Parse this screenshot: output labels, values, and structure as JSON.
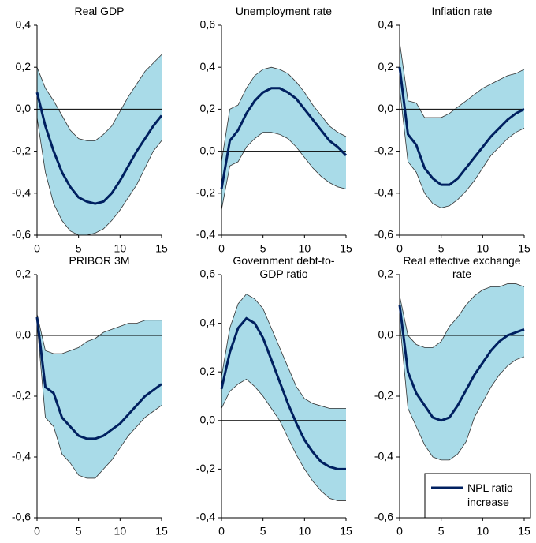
{
  "chart_data": [
    {
      "type": "line",
      "title": "Real GDP",
      "x": [
        0,
        1,
        2,
        3,
        4,
        5,
        6,
        7,
        8,
        9,
        10,
        11,
        12,
        13,
        14,
        15
      ],
      "xlim": [
        0,
        15
      ],
      "xticks": [
        0,
        5,
        10,
        15
      ],
      "ylim": [
        -0.6,
        0.4
      ],
      "yticks": [
        {
          "value": -0.6,
          "label": "-0,6"
        },
        {
          "value": -0.4,
          "label": "-0,4"
        },
        {
          "value": -0.2,
          "label": "-0,2"
        },
        {
          "value": 0,
          "label": "0,0"
        },
        {
          "value": 0.2,
          "label": "0,2"
        },
        {
          "value": 0.4,
          "label": "0,4"
        }
      ],
      "series": [
        {
          "color": "#002060",
          "values": [
            0.08,
            -0.08,
            -0.2,
            -0.3,
            -0.37,
            -0.42,
            -0.44,
            -0.45,
            -0.44,
            -0.4,
            -0.34,
            -0.27,
            -0.2,
            -0.14,
            -0.08,
            -0.03
          ]
        }
      ],
      "band": {
        "color": "#a9dbe8",
        "upper": [
          0.2,
          0.1,
          0.04,
          -0.03,
          -0.1,
          -0.14,
          -0.15,
          -0.15,
          -0.12,
          -0.08,
          -0.01,
          0.06,
          0.12,
          0.18,
          0.22,
          0.26
        ],
        "lower": [
          -0.04,
          -0.3,
          -0.45,
          -0.53,
          -0.58,
          -0.6,
          -0.6,
          -0.59,
          -0.57,
          -0.53,
          -0.48,
          -0.42,
          -0.36,
          -0.28,
          -0.2,
          -0.15
        ]
      }
    },
    {
      "type": "line",
      "title": "Unemployment rate",
      "x": [
        0,
        1,
        2,
        3,
        4,
        5,
        6,
        7,
        8,
        9,
        10,
        11,
        12,
        13,
        14,
        15
      ],
      "xlim": [
        0,
        15
      ],
      "xticks": [
        0,
        5,
        10,
        15
      ],
      "ylim": [
        -0.4,
        0.6
      ],
      "yticks": [
        {
          "value": -0.4,
          "label": "-0,4"
        },
        {
          "value": -0.2,
          "label": "-0,2"
        },
        {
          "value": 0,
          "label": "0,0"
        },
        {
          "value": 0.2,
          "label": "0,2"
        },
        {
          "value": 0.4,
          "label": "0,4"
        },
        {
          "value": 0.6,
          "label": "0,6"
        }
      ],
      "series": [
        {
          "color": "#002060",
          "values": [
            -0.18,
            0.05,
            0.1,
            0.18,
            0.24,
            0.28,
            0.3,
            0.3,
            0.28,
            0.25,
            0.2,
            0.15,
            0.1,
            0.05,
            0.02,
            -0.02
          ]
        }
      ],
      "band": {
        "color": "#a9dbe8",
        "upper": [
          -0.05,
          0.2,
          0.22,
          0.3,
          0.36,
          0.39,
          0.4,
          0.39,
          0.37,
          0.33,
          0.28,
          0.22,
          0.17,
          0.12,
          0.09,
          0.07
        ],
        "lower": [
          -0.28,
          -0.07,
          -0.05,
          0.02,
          0.06,
          0.09,
          0.09,
          0.08,
          0.06,
          0.02,
          -0.03,
          -0.08,
          -0.12,
          -0.15,
          -0.17,
          -0.18
        ]
      }
    },
    {
      "type": "line",
      "title": "Inflation rate",
      "x": [
        0,
        1,
        2,
        3,
        4,
        5,
        6,
        7,
        8,
        9,
        10,
        11,
        12,
        13,
        14,
        15
      ],
      "xlim": [
        0,
        15
      ],
      "xticks": [
        0,
        5,
        10,
        15
      ],
      "ylim": [
        -0.6,
        0.4
      ],
      "yticks": [
        {
          "value": -0.6,
          "label": "-0,6"
        },
        {
          "value": -0.4,
          "label": "-0,4"
        },
        {
          "value": -0.2,
          "label": "-0,2"
        },
        {
          "value": 0,
          "label": "0,0"
        },
        {
          "value": 0.2,
          "label": "0,2"
        },
        {
          "value": 0.4,
          "label": "0,4"
        }
      ],
      "series": [
        {
          "color": "#002060",
          "values": [
            0.2,
            -0.12,
            -0.17,
            -0.28,
            -0.33,
            -0.36,
            -0.36,
            -0.33,
            -0.28,
            -0.23,
            -0.18,
            -0.13,
            -0.09,
            -0.05,
            -0.02,
            0.0
          ]
        }
      ],
      "band": {
        "color": "#a9dbe8",
        "upper": [
          0.32,
          0.04,
          0.03,
          -0.04,
          -0.04,
          -0.04,
          -0.02,
          0.01,
          0.04,
          0.07,
          0.1,
          0.12,
          0.14,
          0.16,
          0.17,
          0.19
        ],
        "lower": [
          0.1,
          -0.25,
          -0.3,
          -0.4,
          -0.45,
          -0.47,
          -0.46,
          -0.43,
          -0.39,
          -0.34,
          -0.28,
          -0.22,
          -0.18,
          -0.14,
          -0.11,
          -0.09
        ]
      }
    },
    {
      "type": "line",
      "title": "PRIBOR 3M",
      "x": [
        0,
        1,
        2,
        3,
        4,
        5,
        6,
        7,
        8,
        9,
        10,
        11,
        12,
        13,
        14,
        15
      ],
      "xlim": [
        0,
        15
      ],
      "xticks": [
        0,
        5,
        10,
        15
      ],
      "ylim": [
        -0.6,
        0.2
      ],
      "yticks": [
        {
          "value": -0.6,
          "label": "-0,6"
        },
        {
          "value": -0.4,
          "label": "-0,4"
        },
        {
          "value": -0.2,
          "label": "-0,2"
        },
        {
          "value": 0,
          "label": "0,0"
        },
        {
          "value": 0.2,
          "label": "0,2"
        }
      ],
      "series": [
        {
          "color": "#002060",
          "values": [
            0.06,
            -0.17,
            -0.19,
            -0.27,
            -0.3,
            -0.33,
            -0.34,
            -0.34,
            -0.33,
            -0.31,
            -0.29,
            -0.26,
            -0.23,
            -0.2,
            -0.18,
            -0.16
          ]
        }
      ],
      "band": {
        "color": "#a9dbe8",
        "upper": [
          0.07,
          -0.05,
          -0.06,
          -0.06,
          -0.05,
          -0.04,
          -0.02,
          -0.01,
          0.01,
          0.02,
          0.03,
          0.04,
          0.04,
          0.05,
          0.05,
          0.05
        ],
        "lower": [
          0.04,
          -0.27,
          -0.3,
          -0.39,
          -0.42,
          -0.46,
          -0.47,
          -0.47,
          -0.44,
          -0.41,
          -0.37,
          -0.33,
          -0.3,
          -0.27,
          -0.25,
          -0.23
        ]
      }
    },
    {
      "type": "line",
      "title": "Government debt-to-GDP ratio",
      "x": [
        0,
        1,
        2,
        3,
        4,
        5,
        6,
        7,
        8,
        9,
        10,
        11,
        12,
        13,
        14,
        15
      ],
      "xlim": [
        0,
        15
      ],
      "xticks": [
        0,
        5,
        10,
        15
      ],
      "ylim": [
        -0.4,
        0.6
      ],
      "yticks": [
        {
          "value": -0.4,
          "label": "-0,4"
        },
        {
          "value": -0.2,
          "label": "-0,2"
        },
        {
          "value": 0,
          "label": "0,0"
        },
        {
          "value": 0.2,
          "label": "0,2"
        },
        {
          "value": 0.4,
          "label": "0,4"
        },
        {
          "value": 0.6,
          "label": "0,6"
        }
      ],
      "series": [
        {
          "color": "#002060",
          "values": [
            0.13,
            0.28,
            0.38,
            0.42,
            0.4,
            0.34,
            0.25,
            0.16,
            0.07,
            -0.01,
            -0.08,
            -0.13,
            -0.17,
            -0.19,
            -0.2,
            -0.2
          ]
        }
      ],
      "band": {
        "color": "#a9dbe8",
        "upper": [
          0.18,
          0.38,
          0.48,
          0.52,
          0.5,
          0.46,
          0.38,
          0.3,
          0.22,
          0.14,
          0.09,
          0.07,
          0.06,
          0.05,
          0.05,
          0.05
        ],
        "lower": [
          0.05,
          0.12,
          0.15,
          0.17,
          0.14,
          0.1,
          0.05,
          0.0,
          -0.07,
          -0.14,
          -0.2,
          -0.25,
          -0.29,
          -0.32,
          -0.33,
          -0.33
        ]
      }
    },
    {
      "type": "line",
      "title": "Real effective exchange rate",
      "x": [
        0,
        1,
        2,
        3,
        4,
        5,
        6,
        7,
        8,
        9,
        10,
        11,
        12,
        13,
        14,
        15
      ],
      "xlim": [
        0,
        15
      ],
      "xticks": [
        0,
        5,
        10,
        15
      ],
      "ylim": [
        -0.6,
        0.2
      ],
      "yticks": [
        {
          "value": -0.6,
          "label": "-0,6"
        },
        {
          "value": -0.4,
          "label": "-0,4"
        },
        {
          "value": -0.2,
          "label": "-0,2"
        },
        {
          "value": 0,
          "label": "0,0"
        },
        {
          "value": 0.2,
          "label": "0,2"
        }
      ],
      "series": [
        {
          "name": "NPL ratio increase",
          "color": "#002060",
          "values": [
            0.1,
            -0.12,
            -0.19,
            -0.23,
            -0.27,
            -0.28,
            -0.27,
            -0.23,
            -0.18,
            -0.13,
            -0.09,
            -0.05,
            -0.02,
            0.0,
            0.01,
            0.02
          ]
        }
      ],
      "band": {
        "color": "#a9dbe8",
        "upper": [
          0.13,
          0.0,
          -0.03,
          -0.04,
          -0.04,
          -0.02,
          0.03,
          0.06,
          0.1,
          0.13,
          0.15,
          0.16,
          0.16,
          0.17,
          0.17,
          0.16
        ],
        "lower": [
          0.05,
          -0.24,
          -0.3,
          -0.36,
          -0.4,
          -0.41,
          -0.41,
          -0.39,
          -0.35,
          -0.27,
          -0.22,
          -0.17,
          -0.13,
          -0.1,
          -0.08,
          -0.07
        ]
      },
      "legend": "lower right"
    }
  ]
}
